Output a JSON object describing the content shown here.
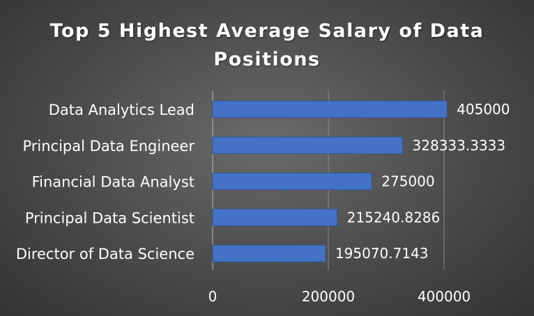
{
  "chart_data": {
    "type": "bar",
    "orientation": "horizontal",
    "title": "Top 5 Highest Average Salary of Data Positions",
    "categories": [
      "Data Analytics Lead",
      "Principal Data Engineer",
      "Financial Data Analyst",
      "Principal Data Scientist",
      "Director of Data Science"
    ],
    "values": [
      405000,
      328333.3333,
      275000,
      215240.8286,
      195070.7143
    ],
    "data_labels": [
      "405000",
      "328333.3333",
      "275000",
      "215240.8286",
      "195070.7143"
    ],
    "x_ticks": [
      "0",
      "200000",
      "400000"
    ],
    "x_tick_values": [
      0,
      200000,
      400000
    ],
    "xlim": [
      0,
      400000
    ],
    "xlabel": "",
    "ylabel": "",
    "grid": true,
    "legend": "none",
    "colors": {
      "bar_fill": "#4472C4",
      "bar_stroke": "#2f5597",
      "text": "#ffffff",
      "gridline": "#8a8a8a",
      "background": "#4a4a4a"
    }
  }
}
